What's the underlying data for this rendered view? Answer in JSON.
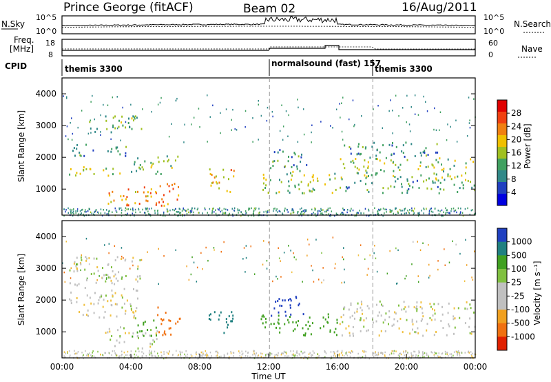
{
  "header": {
    "station": "Prince George (fitACF)",
    "beam": "Beam 02",
    "date": "16/Aug/2011"
  },
  "top_panel": {
    "left_label": "N.Sky",
    "right_label": "N.Search",
    "left_ticks": [
      "10^5",
      "10^0"
    ],
    "right_ticks": [
      "10^5",
      "10^0"
    ]
  },
  "freq_panel": {
    "left_label_1": "Freq.",
    "left_label_2": "[MHz]",
    "right_label": "Nave",
    "left_ticks": [
      "18",
      "8"
    ],
    "right_ticks": [
      "60",
      "0"
    ]
  },
  "cpid": {
    "label": "CPID",
    "segments": [
      "themis 3300",
      "normalsound (fast) 157",
      "themis 3300"
    ]
  },
  "x_axis": {
    "label": "Time UT",
    "ticks": [
      "00:00",
      "04:00",
      "08:00",
      "12:00",
      "16:00",
      "20:00",
      "00:00"
    ]
  },
  "y_axis": {
    "label": "Slant Range [km]",
    "ticks": [
      "4000",
      "3000",
      "2000",
      "1000"
    ]
  },
  "power_colorbar": {
    "label": "Power [dB]",
    "ticks": [
      "28",
      "24",
      "20",
      "16",
      "12",
      "8",
      "4"
    ],
    "colors": [
      "#e00000",
      "#f04010",
      "#f08010",
      "#f0c000",
      "#a0c020",
      "#40a060",
      "#308888",
      "#2040c0",
      "#0000e0"
    ]
  },
  "velocity_colorbar": {
    "label": "Velocity [m s⁻¹]",
    "ticks": [
      "1000",
      "500",
      "100",
      "25",
      "-25",
      "-100",
      "-500",
      "-1000"
    ],
    "colors": [
      "#2040c0",
      "#208080",
      "#40a020",
      "#80c040",
      "#c0c0c0",
      "#c0c0c0",
      "#f0a020",
      "#f07010",
      "#e02000"
    ]
  },
  "chart_data": {
    "type": "heatmap",
    "x_range": [
      "00:00",
      "24:00"
    ],
    "y_range_km": [
      180,
      4500
    ],
    "power_blobs": [
      {
        "t0": 0.4,
        "t1": 4.0,
        "r0": 1450,
        "r1": 1750,
        "db": 14
      },
      {
        "t0": 0.5,
        "t1": 3.8,
        "r0": 2050,
        "r1": 2450,
        "db": 8
      },
      {
        "t0": 1.5,
        "t1": 4.6,
        "r0": 2800,
        "r1": 3400,
        "db": 12
      },
      {
        "t0": 2.5,
        "t1": 6.8,
        "r0": 500,
        "r1": 1200,
        "db": 22
      },
      {
        "t0": 4.0,
        "t1": 6.8,
        "r0": 1500,
        "r1": 2100,
        "db": 12
      },
      {
        "t0": 8.5,
        "t1": 10.0,
        "r0": 900,
        "r1": 1700,
        "db": 20
      },
      {
        "t0": 11.5,
        "t1": 16.0,
        "r0": 900,
        "r1": 1600,
        "db": 14
      },
      {
        "t0": 12.0,
        "t1": 14.2,
        "r0": 1600,
        "r1": 2300,
        "db": 8
      },
      {
        "t0": 16.1,
        "t1": 24.0,
        "r0": 900,
        "r1": 1300,
        "db": 10
      },
      {
        "t0": 16.1,
        "t1": 24.0,
        "r0": 1300,
        "r1": 2000,
        "db": 14
      },
      {
        "t0": 16.3,
        "t1": 22.0,
        "r0": 2000,
        "r1": 2500,
        "db": 8
      }
    ],
    "velocity_blobs": [
      {
        "t0": 0.4,
        "t1": 4.5,
        "r0": 1450,
        "r1": 3400,
        "v": 0
      },
      {
        "t0": 2.5,
        "t1": 5.5,
        "r0": 500,
        "r1": 1200,
        "v": 0
      },
      {
        "t0": 5.5,
        "t1": 6.9,
        "r0": 900,
        "r1": 1800,
        "v": -500
      },
      {
        "t0": 4.0,
        "t1": 5.5,
        "r0": 800,
        "r1": 1400,
        "v": 100
      },
      {
        "t0": 8.5,
        "t1": 10.0,
        "r0": 900,
        "r1": 1700,
        "v": 500
      },
      {
        "t0": 11.5,
        "t1": 16.0,
        "r0": 900,
        "r1": 1600,
        "v": 100
      },
      {
        "t0": 12.0,
        "t1": 14.0,
        "r0": 1500,
        "r1": 2200,
        "v": 1000
      },
      {
        "t0": 16.1,
        "t1": 24.0,
        "r0": 900,
        "r1": 2000,
        "v": 0
      }
    ]
  }
}
